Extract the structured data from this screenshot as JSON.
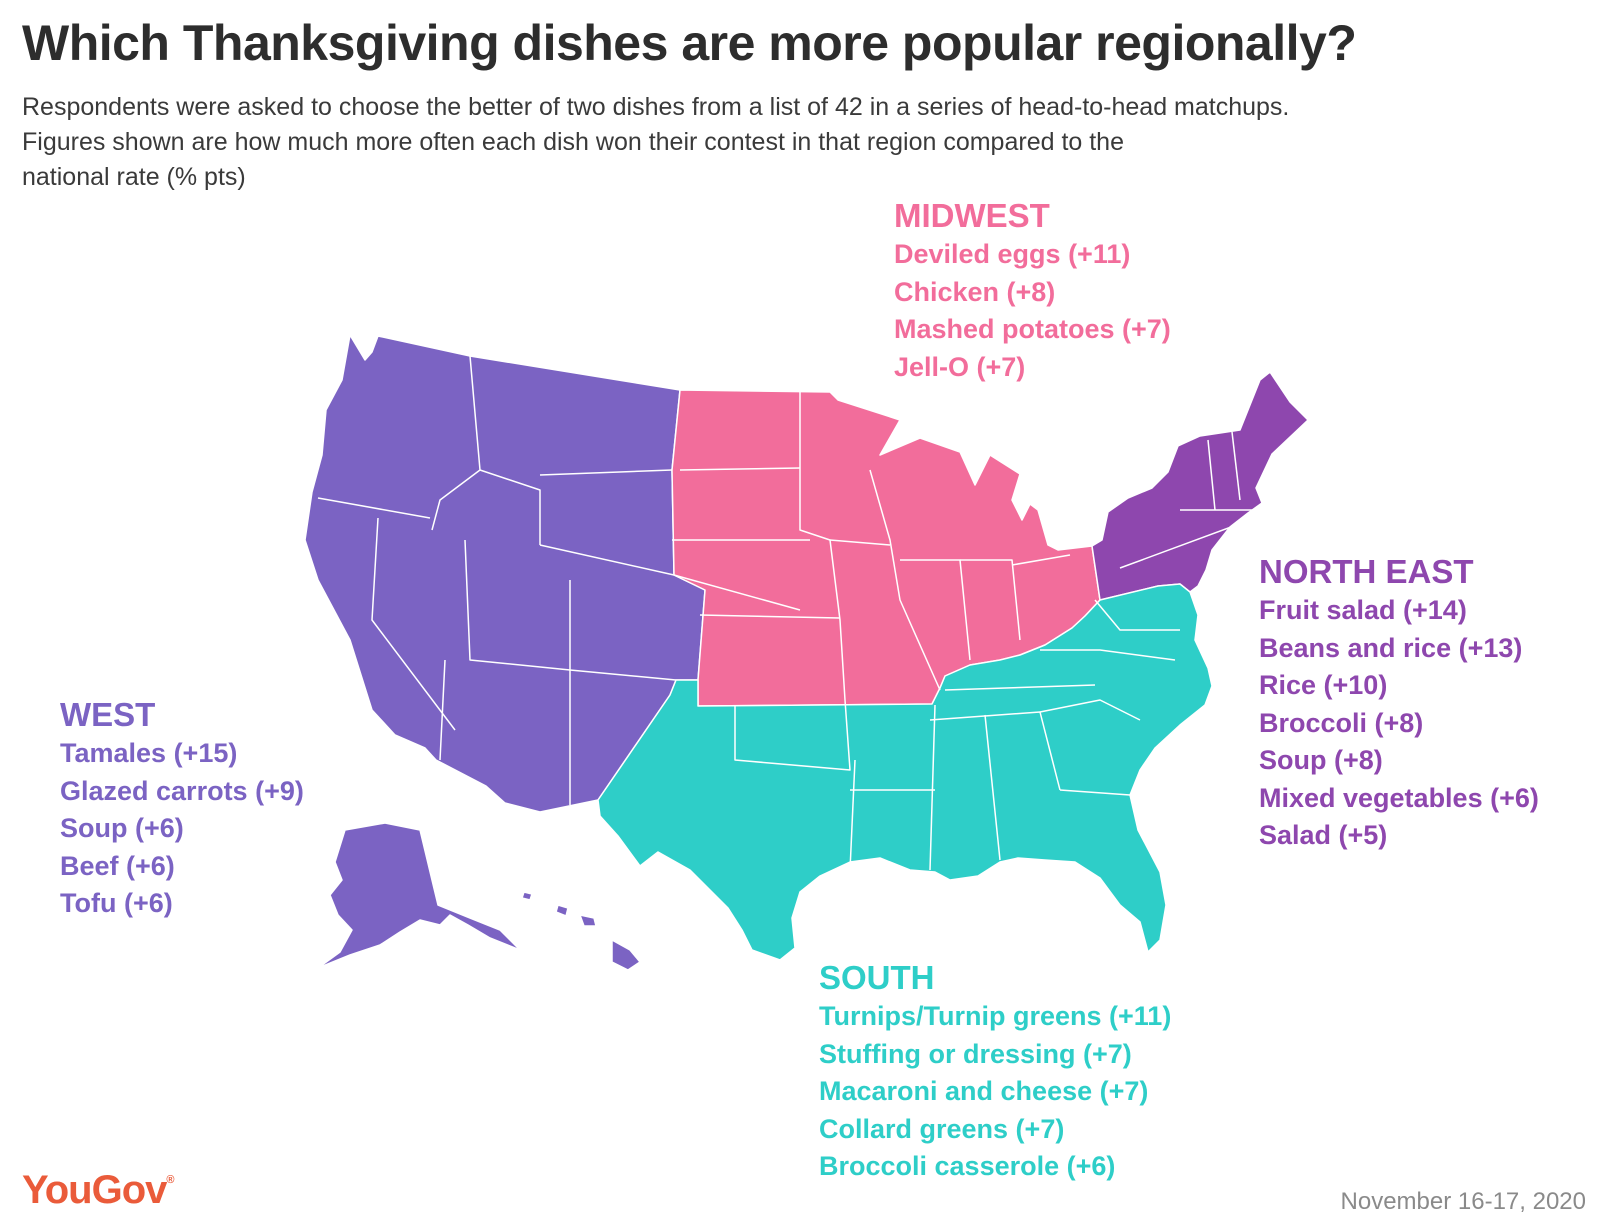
{
  "title": "Which Thanksgiving dishes are more popular regionally?",
  "subtitle": [
    "Respondents were asked to choose the better of two dishes from a list of 42 in a series of head-to-head matchups.",
    "Figures shown are how much more often each dish won their contest in that region compared to the",
    "national rate (% pts)"
  ],
  "colors": {
    "west": "#7b63c3",
    "midwest": "#f26d9b",
    "northeast": "#8e47ae",
    "south": "#2ecec8",
    "logo": "#ea5b3a"
  },
  "regions": {
    "midwest": {
      "name": "MIDWEST",
      "items": [
        "Deviled eggs (+11)",
        "Chicken (+8)",
        "Mashed potatoes (+7)",
        "Jell-O (+7)"
      ]
    },
    "northeast": {
      "name": "NORTH EAST",
      "items": [
        "Fruit salad (+14)",
        "Beans and rice (+13)",
        "Rice (+10)",
        "Broccoli (+8)",
        "Soup (+8)",
        "Mixed vegetables (+6)",
        "Salad (+5)"
      ]
    },
    "west": {
      "name": "WEST",
      "items": [
        "Tamales (+15)",
        "Glazed carrots (+9)",
        "Soup (+6)",
        "Beef (+6)",
        "Tofu (+6)"
      ]
    },
    "south": {
      "name": "SOUTH",
      "items": [
        "Turnips/Turnip greens (+11)",
        "Stuffing or dressing (+7)",
        "Macaroni and cheese (+7)",
        "Collard greens (+7)",
        "Broccoli casserole (+6)"
      ]
    }
  },
  "footer": {
    "logo": "YouGov",
    "logo_mark": "®",
    "date": "November 16-17, 2020"
  }
}
